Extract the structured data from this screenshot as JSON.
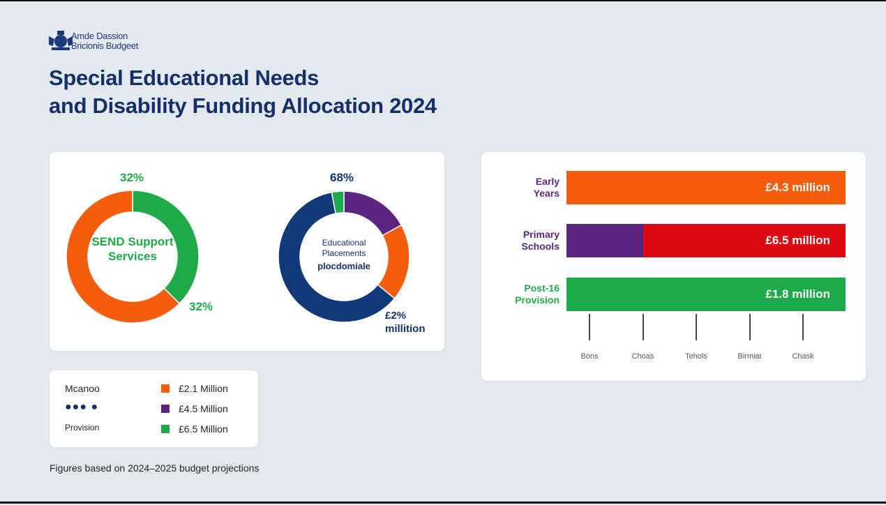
{
  "header": {
    "logo_line1": "Amde Dassion",
    "logo_line2": "Bricionis Budgeet",
    "title_line1": "Special Educational Needs",
    "title_line2": "and Disability Funding Allocation 2024"
  },
  "colors": {
    "orange": "#f45d0c",
    "green": "#1faa4a",
    "purple": "#5b2580",
    "navy": "#123a78",
    "red": "#dd0a12"
  },
  "chart_data": [
    {
      "type": "pie",
      "title": "SEND Support Services",
      "labels": [
        "32%",
        "32%"
      ],
      "slices": [
        {
          "name": "green",
          "value": 37.5,
          "color": "#1faa4a"
        },
        {
          "name": "orange",
          "value": 62.5,
          "color": "#f45d0c"
        }
      ]
    },
    {
      "type": "pie",
      "title": "Educational Placements",
      "subtitle": "plocdomiale",
      "labels": [
        "68%",
        "£2%",
        "millition"
      ],
      "slices": [
        {
          "name": "purple",
          "value": 17,
          "color": "#5b2580"
        },
        {
          "name": "orange",
          "value": 19,
          "color": "#f45d0c"
        },
        {
          "name": "navy",
          "value": 61,
          "color": "#123a78"
        },
        {
          "name": "green",
          "value": 3,
          "color": "#1faa4a"
        }
      ]
    },
    {
      "type": "bar",
      "orientation": "horizontal",
      "categories": [
        [
          "Early",
          "Years"
        ],
        [
          "Primary",
          "Schools"
        ],
        [
          "Post-16",
          "Provision"
        ]
      ],
      "value_labels": [
        "£4.3 million",
        "£6.5 million",
        "£1.8 million"
      ],
      "tick_labels": [
        "Bons",
        "Choas",
        "Tehols",
        "Birmiat",
        "Chask"
      ]
    }
  ],
  "legend": {
    "left": [
      "Mcanoo",
      "Provision"
    ],
    "items": [
      "£2.1 Million",
      "£4.5 Million",
      "£6.5 Million"
    ]
  },
  "footer": "Figures based on 2024–2025 budget projections"
}
